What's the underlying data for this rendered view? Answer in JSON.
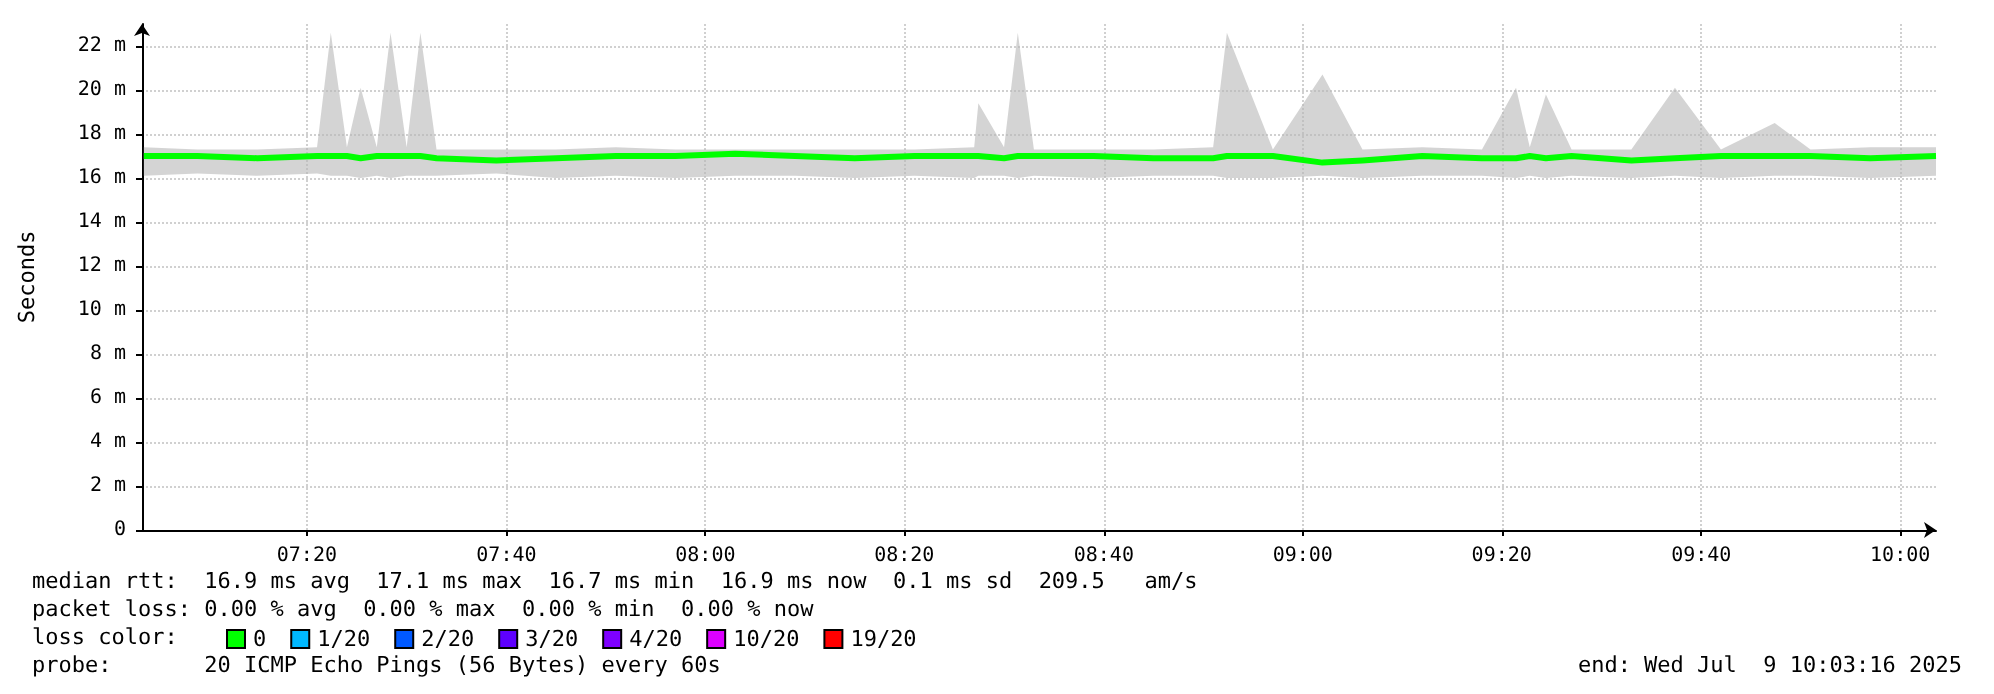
{
  "chart_data": {
    "type": "line",
    "ylabel": "Seconds",
    "x": [
      7.06,
      7.15,
      7.25,
      7.35,
      7.373,
      7.4,
      7.423,
      7.45,
      7.473,
      7.5,
      7.523,
      7.55,
      7.65,
      7.75,
      7.85,
      7.95,
      8.05,
      8.15,
      8.25,
      8.35,
      8.45,
      8.457,
      8.5,
      8.523,
      8.55,
      8.65,
      8.75,
      8.85,
      8.873,
      8.95,
      9.033,
      9.1,
      9.2,
      9.3,
      9.357,
      9.38,
      9.407,
      9.45,
      9.55,
      9.623,
      9.7,
      9.79,
      9.85,
      9.95,
      10.06
    ],
    "series": [
      {
        "name": "0",
        "color": "#00ff00",
        "values": [
          17.0,
          17.0,
          16.9,
          17.0,
          17.0,
          17.0,
          16.9,
          17.0,
          17.0,
          17.0,
          17.0,
          16.9,
          16.8,
          16.9,
          17.0,
          17.0,
          17.1,
          17.0,
          16.9,
          17.0,
          17.0,
          17.0,
          16.9,
          17.0,
          17.0,
          17.0,
          16.9,
          16.9,
          17.0,
          17.0,
          16.7,
          16.8,
          17.0,
          16.9,
          16.9,
          17.0,
          16.9,
          17.0,
          16.8,
          16.9,
          17.0,
          17.0,
          17.0,
          16.9,
          17.0
        ],
        "lower": [
          16.1,
          16.2,
          16.1,
          16.2,
          16.1,
          16.1,
          16.0,
          16.1,
          16.0,
          16.1,
          16.1,
          16.1,
          16.2,
          16.0,
          16.1,
          16.0,
          16.1,
          16.1,
          16.0,
          16.1,
          16.0,
          16.1,
          16.1,
          16.0,
          16.1,
          16.0,
          16.1,
          16.1,
          16.0,
          16.0,
          16.1,
          16.0,
          16.1,
          16.1,
          16.0,
          16.1,
          16.0,
          16.1,
          16.0,
          16.1,
          16.0,
          16.1,
          16.1,
          16.0,
          16.1
        ],
        "upper": [
          17.4,
          17.3,
          17.3,
          17.4,
          22.6,
          17.4,
          20.1,
          17.4,
          22.6,
          17.4,
          22.6,
          17.3,
          17.3,
          17.3,
          17.4,
          17.3,
          17.3,
          17.3,
          17.3,
          17.3,
          17.4,
          19.4,
          17.4,
          22.6,
          17.3,
          17.3,
          17.3,
          17.4,
          22.6,
          17.3,
          20.7,
          17.3,
          17.4,
          17.3,
          20.1,
          17.4,
          19.8,
          17.3,
          17.3,
          20.1,
          17.3,
          18.5,
          17.3,
          17.4,
          17.4
        ]
      },
      {
        "name": "1/20",
        "color": "#00b8ff",
        "values": [
          null,
          null,
          null,
          null,
          null,
          null,
          null,
          null,
          null,
          null,
          null,
          null,
          null,
          null,
          null,
          null,
          null,
          null,
          null,
          null,
          null,
          null,
          null,
          null,
          null,
          null,
          null,
          null,
          null,
          null,
          null,
          null,
          null,
          null,
          null,
          null,
          null,
          null,
          null,
          null,
          null,
          null,
          null,
          null,
          null
        ]
      },
      {
        "name": "2/20",
        "color": "#0059ff",
        "values": [
          null,
          null,
          null,
          null,
          null,
          null,
          null,
          null,
          null,
          null,
          null,
          null,
          null,
          null,
          null,
          null,
          null,
          null,
          null,
          null,
          null,
          null,
          null,
          null,
          null,
          null,
          null,
          null,
          null,
          null,
          null,
          null,
          null,
          null,
          null,
          null,
          null,
          null,
          null,
          null,
          null,
          null,
          null,
          null,
          null
        ]
      },
      {
        "name": "3/20",
        "color": "#5e00ff",
        "values": [
          null,
          null,
          null,
          null,
          null,
          null,
          null,
          null,
          null,
          null,
          null,
          null,
          null,
          null,
          null,
          null,
          null,
          null,
          null,
          null,
          null,
          null,
          null,
          null,
          null,
          null,
          null,
          null,
          null,
          null,
          null,
          null,
          null,
          null,
          null,
          null,
          null,
          null,
          null,
          null,
          null,
          null,
          null,
          null,
          null
        ]
      },
      {
        "name": "4/20",
        "color": "#7e00ff",
        "values": [
          null,
          null,
          null,
          null,
          null,
          null,
          null,
          null,
          null,
          null,
          null,
          null,
          null,
          null,
          null,
          null,
          null,
          null,
          null,
          null,
          null,
          null,
          null,
          null,
          null,
          null,
          null,
          null,
          null,
          null,
          null,
          null,
          null,
          null,
          null,
          null,
          null,
          null,
          null,
          null,
          null,
          null,
          null,
          null,
          null
        ]
      },
      {
        "name": "10/20",
        "color": "#dd00ff",
        "values": [
          null,
          null,
          null,
          null,
          null,
          null,
          null,
          null,
          null,
          null,
          null,
          null,
          null,
          null,
          null,
          null,
          null,
          null,
          null,
          null,
          null,
          null,
          null,
          null,
          null,
          null,
          null,
          null,
          null,
          null,
          null,
          null,
          null,
          null,
          null,
          null,
          null,
          null,
          null,
          null,
          null,
          null,
          null,
          null,
          null
        ]
      },
      {
        "name": "19/20",
        "color": "#ff0000",
        "values": [
          null,
          null,
          null,
          null,
          null,
          null,
          null,
          null,
          null,
          null,
          null,
          null,
          null,
          null,
          null,
          null,
          null,
          null,
          null,
          null,
          null,
          null,
          null,
          null,
          null,
          null,
          null,
          null,
          null,
          null,
          null,
          null,
          null,
          null,
          null,
          null,
          null,
          null,
          null,
          null,
          null,
          null,
          null,
          null,
          null
        ]
      }
    ],
    "xlim": [
      7.057,
      10.06
    ],
    "ylim": [
      0,
      23
    ],
    "xticks": [
      {
        "value": 7.333,
        "label": "07:20"
      },
      {
        "value": 7.667,
        "label": "07:40"
      },
      {
        "value": 8,
        "label": "08:00"
      },
      {
        "value": 8.333,
        "label": "08:20"
      },
      {
        "value": 8.667,
        "label": "08:40"
      },
      {
        "value": 9,
        "label": "09:00"
      },
      {
        "value": 9.333,
        "label": "09:20"
      },
      {
        "value": 9.667,
        "label": "09:40"
      },
      {
        "value": 10,
        "label": "10:00"
      }
    ],
    "yticks": [
      0,
      {
        "value": 2,
        "label": "2 m"
      },
      {
        "value": 4,
        "label": "4 m"
      },
      {
        "value": 6,
        "label": "6 m"
      },
      {
        "value": 8,
        "label": "8 m"
      },
      {
        "value": 10,
        "label": "10 m"
      },
      {
        "value": 12,
        "label": "12 m"
      },
      {
        "value": 14,
        "label": "14 m"
      },
      {
        "value": 16,
        "label": "16 m"
      },
      {
        "value": 18,
        "label": "18 m"
      },
      {
        "value": 20,
        "label": "20 m"
      },
      {
        "value": 22,
        "label": "22 m"
      }
    ],
    "grid": true,
    "legend": "bottom",
    "marker": "none",
    "line_style": "solid",
    "annotations": [
      "median rtt:  16.9 ms avg  17.1 ms max  16.7 ms min  16.9 ms now  0.1 ms sd  209.5   am/s",
      "packet loss: 0.00 % avg  0.00 % max  0.00 % min  0.00 % now",
      "loss color:",
      "probe:       20 ICMP Echo Pings (56 Bytes) every 60s",
      "end: Wed Jul  9 10:03:16 2025"
    ]
  }
}
